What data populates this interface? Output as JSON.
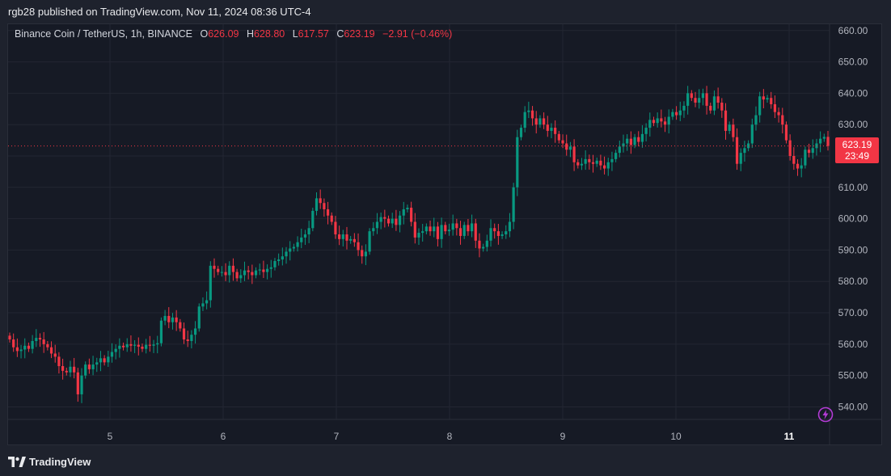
{
  "header": {
    "published_text": "rgb28 published on TradingView.com, Nov 11, 2024 08:36 UTC-4"
  },
  "legend": {
    "symbol": "Binance Coin / TetherUS, 1h, BINANCE",
    "o_label": "O",
    "o_value": "626.09",
    "h_label": "H",
    "h_value": "628.80",
    "l_label": "L",
    "l_value": "617.57",
    "c_label": "C",
    "c_value": "623.19",
    "change": "−2.91 (−0.46%)"
  },
  "price_badge": {
    "price": "623.19",
    "countdown": "23:49"
  },
  "footer": {
    "brand": "TradingView"
  },
  "colors": {
    "up": "#089981",
    "down": "#f23645",
    "background": "#161a25",
    "grid": "#232632"
  },
  "chart_data": {
    "type": "candlestick",
    "grid": true,
    "ylim": [
      536,
      662
    ],
    "y_ticks": [
      "540.00",
      "550.00",
      "560.00",
      "570.00",
      "580.00",
      "590.00",
      "600.00",
      "610.00",
      "620.00",
      "630.00",
      "640.00",
      "650.00",
      "660.00"
    ],
    "x_ticks": [
      {
        "label": "5",
        "day": 5,
        "bold": false
      },
      {
        "label": "6",
        "day": 6,
        "bold": false
      },
      {
        "label": "7",
        "day": 7,
        "bold": false
      },
      {
        "label": "8",
        "day": 8,
        "bold": false
      },
      {
        "label": "9",
        "day": 9,
        "bold": false
      },
      {
        "label": "10",
        "day": 10,
        "bold": false
      },
      {
        "label": "11",
        "day": 11,
        "bold": true
      }
    ],
    "last_price": 623.19,
    "candles_close": [
      561.5,
      559.0,
      557.8,
      558.3,
      559.5,
      558.5,
      561.0,
      562.0,
      561.5,
      560.0,
      559.0,
      557.0,
      556.0,
      553.0,
      551.5,
      551.0,
      552.8,
      551.0,
      544.0,
      550.0,
      553.5,
      552.0,
      553.5,
      554.2,
      555.5,
      554.2,
      556.0,
      557.5,
      558.5,
      559.5,
      559.0,
      560.0,
      559.5,
      559.8,
      559.2,
      558.5,
      559.8,
      559.5,
      559.9,
      560.3,
      567.5,
      569.0,
      567.0,
      568.5,
      567.0,
      565.0,
      561.5,
      561.0,
      563.0,
      565.0,
      572.0,
      573.0,
      574.0,
      585.0,
      584.0,
      583.0,
      583.0,
      582.0,
      585.0,
      583.0,
      581.0,
      582.0,
      583.5,
      583.0,
      582.0,
      583.5,
      583.8,
      583.0,
      584.0,
      584.5,
      586.5,
      587.0,
      588.0,
      589.5,
      590.5,
      591.0,
      592.5,
      594.0,
      595.0,
      597.0,
      602.5,
      606.5,
      605.0,
      603.0,
      601.0,
      599.0,
      595.0,
      593.5,
      595.0,
      593.0,
      593.5,
      592.5,
      590.0,
      588.0,
      589.5,
      596.0,
      597.0,
      599.0,
      600.5,
      600.0,
      598.5,
      600.0,
      598.0,
      601.0,
      603.0,
      603.5,
      599.0,
      594.0,
      595.5,
      596.0,
      597.5,
      596.0,
      597.5,
      593.5,
      598.0,
      596.0,
      596.5,
      598.5,
      597.0,
      594.5,
      598.0,
      596.0,
      598.5,
      593.0,
      590.5,
      591.0,
      593.0,
      597.0,
      596.0,
      594.5,
      595.0,
      596.0,
      599.0,
      610.0,
      626.0,
      629.0,
      634.0,
      634.5,
      632.0,
      630.0,
      632.0,
      630.0,
      628.0,
      629.0,
      627.0,
      625.0,
      624.0,
      622.0,
      623.0,
      618.0,
      617.0,
      617.5,
      619.0,
      618.0,
      617.5,
      618.5,
      617.0,
      616.0,
      618.0,
      619.0,
      621.0,
      623.0,
      624.0,
      625.5,
      623.5,
      626.0,
      624.5,
      627.0,
      629.0,
      631.5,
      630.5,
      632.0,
      631.0,
      630.0,
      632.5,
      634.0,
      633.0,
      634.5,
      636.0,
      640.0,
      638.5,
      637.0,
      638.5,
      640.0,
      636.0,
      634.5,
      639.0,
      637.0,
      634.5,
      628.0,
      630.0,
      626.0,
      617.5,
      621.0,
      622.5,
      624.0,
      630.0,
      633.0,
      639.0,
      638.0,
      638.5,
      636.5,
      634.0,
      633.0,
      630.0,
      625.0,
      620.0,
      617.5,
      616.0,
      617.0,
      622.0,
      621.0,
      622.5,
      624.0,
      625.5,
      626.09,
      623.19
    ]
  }
}
